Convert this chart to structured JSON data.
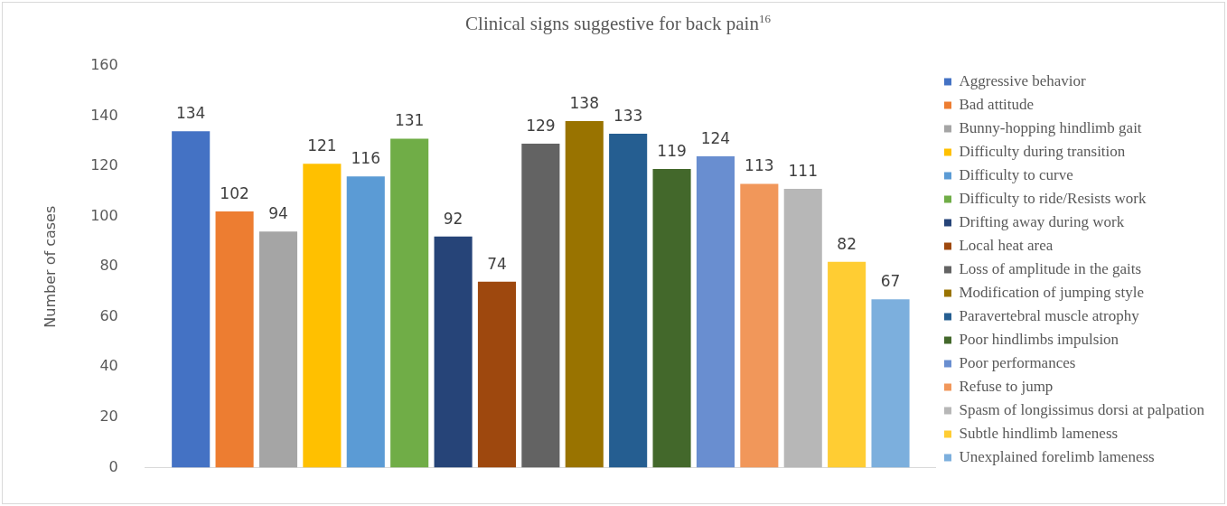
{
  "chart_data": {
    "type": "bar",
    "title": "Clinical signs suggestive for back pain$^{16}$",
    "ylabel": "Number of cases",
    "categories": [
      null
    ],
    "series": [
      {
        "name": "Aggressive behavior",
        "color": "#4472c4",
        "values": [
          134
        ]
      },
      {
        "name": "Bad attitude",
        "color": "#ed7d31",
        "values": [
          102
        ]
      },
      {
        "name": "Bunny-hopping hindlimb gait",
        "color": "#a5a5a5",
        "values": [
          94
        ]
      },
      {
        "name": "Difficulty during transition",
        "color": "#ffc000",
        "values": [
          121
        ]
      },
      {
        "name": "Difficulty to curve",
        "color": "#5b9bd5",
        "values": [
          116
        ]
      },
      {
        "name": "Difficulty to ride/Resists work",
        "color": "#70ad47",
        "values": [
          131
        ]
      },
      {
        "name": "Drifting away during work",
        "color": "#264478",
        "values": [
          92
        ]
      },
      {
        "name": "Local heat area",
        "color": "#9e480e",
        "values": [
          74
        ]
      },
      {
        "name": "Loss of amplitude in the gaits",
        "color": "#636363",
        "values": [
          129
        ]
      },
      {
        "name": "Modification of jumping style",
        "color": "#997300",
        "values": [
          138
        ]
      },
      {
        "name": "Paravertebral muscle atrophy",
        "color": "#255e91",
        "values": [
          133
        ]
      },
      {
        "name": "Poor hindlimbs impulsion",
        "color": "#43682b",
        "values": [
          119
        ]
      },
      {
        "name": "Poor performances",
        "color": "#698ed0",
        "values": [
          124
        ]
      },
      {
        "name": "Refuse to jump",
        "color": "#f1975a",
        "values": [
          113
        ]
      },
      {
        "name": "Spasm of longissimus dorsi at palpation",
        "color": "#b7b7b7",
        "values": [
          111
        ]
      },
      {
        "name": "Subtle hindlimb lameness",
        "color": "#ffcd33",
        "values": [
          82
        ]
      },
      {
        "name": "Unexplained forelimb lameness",
        "color": "#7cafdd",
        "values": [
          67
        ]
      }
    ],
    "ylim": [
      0,
      160
    ],
    "yticks": [
      0,
      20,
      40,
      60,
      80,
      100,
      120,
      140,
      160
    ],
    "grid": false,
    "legend": "right",
    "data_labels": true
  }
}
